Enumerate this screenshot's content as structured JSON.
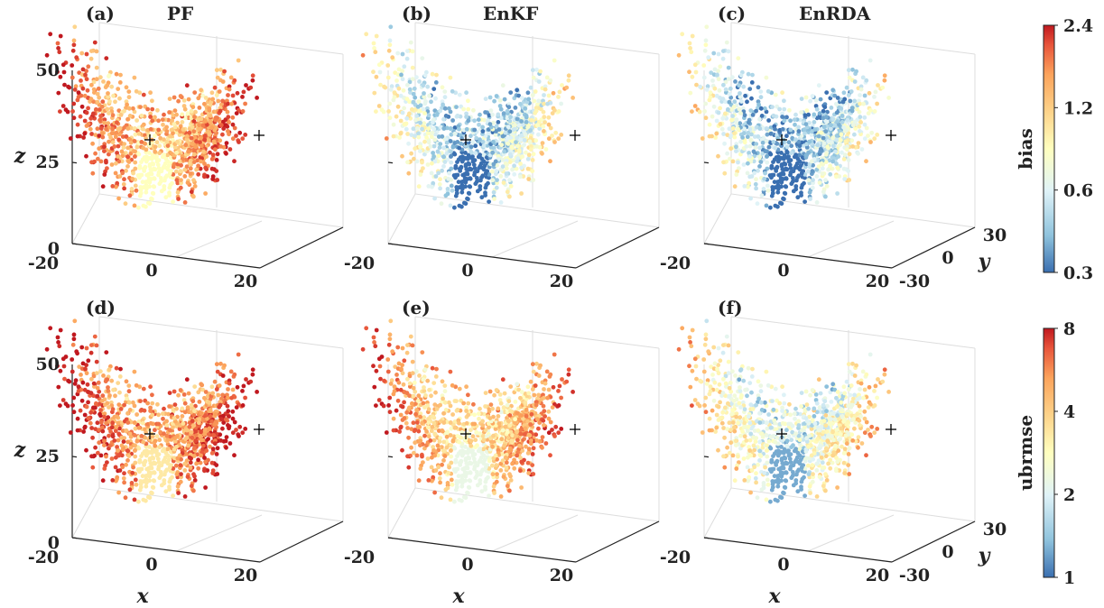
{
  "colors": {
    "scale": [
      "#3a6fb0",
      "#8fc3dd",
      "#e0f3f8",
      "#ffffbf",
      "#fdd38a",
      "#fca45c",
      "#e8553b",
      "#c0181f"
    ],
    "axis": "#222222",
    "grid": "#dddddd",
    "fixed_point_marker": "#000000"
  },
  "chart_data": {
    "type": "scatter3d",
    "description_note": "",
    "row_colorbars": [
      {
        "label": "bias",
        "ticks": [
          "2.4",
          "1.2",
          "0.6",
          "0.3"
        ],
        "range": [
          0.3,
          2.4
        ],
        "scale": "log"
      },
      {
        "label": "ubrmse",
        "ticks": [
          "8",
          "4",
          "2",
          "1"
        ],
        "range": [
          1,
          8
        ],
        "scale": "log"
      }
    ],
    "axes": {
      "xlabel": "x",
      "ylabel": "y",
      "zlabel": "z",
      "x_ticks": [
        "-20",
        "0",
        "20"
      ],
      "y_ticks": [
        "30",
        "0",
        "-30"
      ],
      "z_ticks": [
        "50",
        "25",
        "0"
      ],
      "x_range": [
        -20,
        20
      ],
      "y_range": [
        -30,
        30
      ],
      "z_range": [
        0,
        50
      ]
    },
    "fixed_points_marker": "+",
    "panels": [
      {
        "letter": "(a)",
        "title": "PF",
        "row": 0,
        "metric": "bias",
        "level": 0.78
      },
      {
        "letter": "(b)",
        "title": "EnKF",
        "row": 0,
        "metric": "bias",
        "level": 0.35
      },
      {
        "letter": "(c)",
        "title": "EnRDA",
        "row": 0,
        "metric": "bias",
        "level": 0.3
      },
      {
        "letter": "(d)",
        "title": "",
        "row": 1,
        "metric": "ubrmse",
        "level": 0.85
      },
      {
        "letter": "(e)",
        "title": "",
        "row": 1,
        "metric": "ubrmse",
        "level": 0.68
      },
      {
        "letter": "(f)",
        "title": "",
        "row": 1,
        "metric": "ubrmse",
        "level": 0.45
      }
    ]
  }
}
